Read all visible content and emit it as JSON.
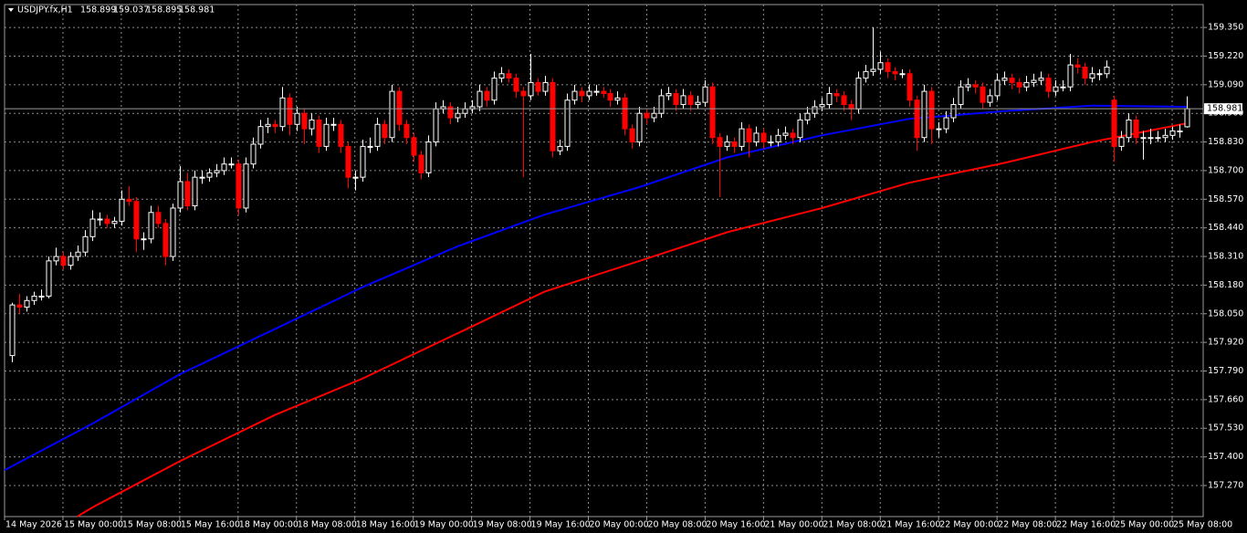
{
  "chart_data": {
    "type": "candlestick",
    "title": "USDJPY.fx,H1",
    "bull_color": "#ffffff",
    "bear_color": "#ff0000",
    "grid": true,
    "xlim": [
      -1,
      163.25
    ],
    "ylim": [
      157.129,
      159.454
    ],
    "yticks": [
      {
        "value": 159.35,
        "label": "159.350"
      },
      {
        "value": 159.22,
        "label": "159.220"
      },
      {
        "value": 159.09,
        "label": "159.090"
      },
      {
        "value": 158.96,
        "label": "158.960"
      },
      {
        "value": 158.83,
        "label": "158.830"
      },
      {
        "value": 158.7,
        "label": "158.700"
      },
      {
        "value": 158.57,
        "label": "158.570"
      },
      {
        "value": 158.44,
        "label": "158.440"
      },
      {
        "value": 158.31,
        "label": "158.310"
      },
      {
        "value": 158.18,
        "label": "158.180"
      },
      {
        "value": 158.05,
        "label": "158.050"
      },
      {
        "value": 157.92,
        "label": "157.920"
      },
      {
        "value": 157.79,
        "label": "157.790"
      },
      {
        "value": 157.66,
        "label": "157.660"
      },
      {
        "value": 157.53,
        "label": "157.530"
      },
      {
        "value": 157.4,
        "label": "157.400"
      },
      {
        "value": 157.27,
        "label": "157.270"
      }
    ],
    "xticks": [
      {
        "value": -1,
        "label": "14 May 2026"
      },
      {
        "value": 7,
        "label": "15 May 00:00"
      },
      {
        "value": 15,
        "label": "15 May 08:00"
      },
      {
        "value": 23,
        "label": "15 May 16:00"
      },
      {
        "value": 31,
        "label": "18 May 00:00"
      },
      {
        "value": 39,
        "label": "18 May 08:00"
      },
      {
        "value": 47,
        "label": "18 May 16:00"
      },
      {
        "value": 55,
        "label": "19 May 00:00"
      },
      {
        "value": 63,
        "label": "19 May 08:00"
      },
      {
        "value": 71,
        "label": "19 May 16:00"
      },
      {
        "value": 79,
        "label": "20 May 00:00"
      },
      {
        "value": 87,
        "label": "20 May 08:00"
      },
      {
        "value": 95,
        "label": "20 May 16:00"
      },
      {
        "value": 103,
        "label": "21 May 00:00"
      },
      {
        "value": 111,
        "label": "21 May 08:00"
      },
      {
        "value": 119,
        "label": "21 May 16:00"
      },
      {
        "value": 127,
        "label": "22 May 00:00"
      },
      {
        "value": 135,
        "label": "22 May 08:00"
      },
      {
        "value": 143,
        "label": "22 May 16:00"
      },
      {
        "value": 151,
        "label": "25 May 00:00"
      },
      {
        "value": 159,
        "label": "25 May 08:00"
      }
    ],
    "ohlc": [
      [
        157.86,
        158.1,
        157.83,
        158.09
      ],
      [
        158.09,
        158.14,
        158.05,
        158.08
      ],
      [
        158.08,
        158.13,
        158.06,
        158.11
      ],
      [
        158.11,
        158.15,
        158.09,
        158.13
      ],
      [
        158.13,
        158.16,
        158.11,
        158.13
      ],
      [
        158.13,
        158.31,
        158.12,
        158.29
      ],
      [
        158.29,
        158.35,
        158.27,
        158.31
      ],
      [
        158.31,
        158.33,
        158.25,
        158.27
      ],
      [
        158.27,
        158.33,
        158.25,
        158.31
      ],
      [
        158.31,
        158.36,
        158.29,
        158.33
      ],
      [
        158.33,
        158.43,
        158.31,
        158.4
      ],
      [
        158.4,
        158.52,
        158.38,
        158.48
      ],
      [
        158.48,
        158.51,
        158.45,
        158.48
      ],
      [
        158.48,
        158.5,
        158.44,
        158.46
      ],
      [
        158.46,
        158.49,
        158.44,
        158.47
      ],
      [
        158.47,
        158.61,
        158.45,
        158.57
      ],
      [
        158.57,
        158.63,
        158.54,
        158.56
      ],
      [
        158.56,
        158.58,
        158.33,
        158.39
      ],
      [
        158.39,
        158.42,
        158.34,
        158.39
      ],
      [
        158.39,
        158.54,
        158.37,
        158.51
      ],
      [
        158.51,
        158.54,
        158.44,
        158.46
      ],
      [
        158.46,
        158.48,
        158.27,
        158.31
      ],
      [
        158.31,
        158.55,
        158.29,
        158.53
      ],
      [
        158.53,
        158.72,
        158.51,
        158.65
      ],
      [
        158.65,
        158.69,
        158.52,
        158.54
      ],
      [
        158.54,
        158.7,
        158.52,
        158.67
      ],
      [
        158.67,
        158.7,
        158.64,
        158.67
      ],
      [
        158.67,
        158.71,
        158.65,
        158.69
      ],
      [
        158.69,
        158.73,
        158.67,
        158.7
      ],
      [
        158.7,
        158.76,
        158.68,
        158.73
      ],
      [
        158.73,
        158.76,
        158.71,
        158.73
      ],
      [
        158.73,
        158.75,
        158.5,
        158.53
      ],
      [
        158.53,
        158.76,
        158.51,
        158.73
      ],
      [
        158.73,
        158.85,
        158.71,
        158.82
      ],
      [
        158.82,
        158.93,
        158.8,
        158.9
      ],
      [
        158.9,
        158.94,
        158.87,
        158.91
      ],
      [
        158.91,
        158.93,
        158.87,
        158.9
      ],
      [
        158.9,
        159.08,
        158.88,
        159.03
      ],
      [
        159.03,
        159.05,
        158.86,
        158.91
      ],
      [
        158.91,
        158.99,
        158.88,
        158.96
      ],
      [
        158.96,
        158.98,
        158.82,
        158.89
      ],
      [
        158.89,
        158.96,
        158.86,
        158.93
      ],
      [
        158.93,
        158.95,
        158.78,
        158.81
      ],
      [
        158.81,
        158.94,
        158.79,
        158.91
      ],
      [
        158.91,
        158.94,
        158.88,
        158.91
      ],
      [
        158.91,
        158.93,
        158.78,
        158.81
      ],
      [
        158.81,
        158.83,
        158.62,
        158.67
      ],
      [
        158.67,
        158.7,
        158.61,
        158.67
      ],
      [
        158.67,
        158.84,
        158.65,
        158.81
      ],
      [
        158.81,
        158.85,
        158.78,
        158.81
      ],
      [
        158.81,
        158.94,
        158.79,
        158.91
      ],
      [
        158.91,
        158.93,
        158.82,
        158.85
      ],
      [
        158.85,
        159.09,
        158.83,
        159.06
      ],
      [
        159.06,
        159.08,
        158.88,
        158.91
      ],
      [
        158.91,
        158.93,
        158.82,
        158.85
      ],
      [
        158.85,
        158.87,
        158.74,
        158.77
      ],
      [
        158.77,
        158.79,
        158.66,
        158.69
      ],
      [
        158.69,
        158.86,
        158.67,
        158.83
      ],
      [
        158.83,
        159.01,
        158.81,
        158.98
      ],
      [
        158.98,
        159.02,
        158.96,
        158.99
      ],
      [
        158.99,
        159.01,
        158.91,
        158.94
      ],
      [
        158.94,
        158.99,
        158.92,
        158.96
      ],
      [
        158.96,
        159.01,
        158.94,
        158.98
      ],
      [
        158.98,
        159.02,
        158.96,
        158.99
      ],
      [
        158.99,
        159.09,
        158.97,
        159.06
      ],
      [
        159.06,
        159.08,
        158.99,
        159.02
      ],
      [
        159.02,
        159.15,
        159.0,
        159.12
      ],
      [
        159.12,
        159.17,
        159.1,
        159.14
      ],
      [
        159.14,
        159.16,
        159.1,
        159.12
      ],
      [
        159.12,
        159.14,
        159.03,
        159.06
      ],
      [
        159.06,
        159.08,
        158.67,
        159.04
      ],
      [
        159.04,
        159.23,
        159.02,
        159.1
      ],
      [
        159.1,
        159.12,
        159.04,
        159.06
      ],
      [
        159.06,
        159.13,
        159.04,
        159.1
      ],
      [
        159.1,
        159.12,
        158.76,
        158.79
      ],
      [
        158.79,
        158.84,
        158.77,
        158.81
      ],
      [
        158.81,
        159.05,
        158.79,
        159.02
      ],
      [
        159.02,
        159.09,
        159.0,
        159.06
      ],
      [
        159.06,
        159.08,
        159.01,
        159.04
      ],
      [
        159.04,
        159.09,
        159.02,
        159.06
      ],
      [
        159.06,
        159.09,
        159.04,
        159.06
      ],
      [
        159.06,
        159.08,
        159.03,
        159.05
      ],
      [
        159.05,
        159.07,
        158.99,
        159.02
      ],
      [
        159.02,
        159.06,
        159.0,
        159.03
      ],
      [
        159.03,
        159.05,
        158.86,
        158.89
      ],
      [
        158.89,
        158.91,
        158.8,
        158.83
      ],
      [
        158.83,
        158.99,
        158.81,
        158.96
      ],
      [
        158.96,
        158.98,
        158.91,
        158.94
      ],
      [
        158.94,
        158.99,
        158.92,
        158.96
      ],
      [
        158.96,
        159.07,
        158.94,
        159.04
      ],
      [
        159.04,
        159.08,
        159.02,
        159.05
      ],
      [
        159.05,
        159.07,
        158.97,
        159.0
      ],
      [
        159.0,
        159.07,
        158.98,
        159.04
      ],
      [
        159.04,
        159.06,
        158.97,
        159.0
      ],
      [
        159.0,
        159.04,
        158.98,
        159.01
      ],
      [
        159.01,
        159.11,
        158.99,
        159.08
      ],
      [
        159.08,
        159.1,
        158.82,
        158.85
      ],
      [
        158.85,
        158.87,
        158.58,
        158.81
      ],
      [
        158.81,
        158.86,
        158.79,
        158.83
      ],
      [
        158.83,
        158.85,
        158.78,
        158.81
      ],
      [
        158.81,
        158.92,
        158.79,
        158.89
      ],
      [
        158.89,
        158.91,
        158.76,
        158.83
      ],
      [
        158.83,
        158.9,
        158.81,
        158.87
      ],
      [
        158.87,
        158.89,
        158.8,
        158.83
      ],
      [
        158.83,
        158.86,
        158.81,
        158.83
      ],
      [
        158.83,
        158.89,
        158.81,
        158.86
      ],
      [
        158.86,
        158.9,
        158.84,
        158.87
      ],
      [
        158.87,
        158.89,
        158.82,
        158.85
      ],
      [
        158.85,
        158.96,
        158.83,
        158.93
      ],
      [
        158.93,
        158.99,
        158.91,
        158.96
      ],
      [
        158.96,
        159.02,
        158.94,
        158.99
      ],
      [
        158.99,
        159.03,
        158.97,
        159.0
      ],
      [
        159.0,
        159.08,
        158.98,
        159.05
      ],
      [
        159.05,
        159.07,
        159.01,
        159.04
      ],
      [
        159.04,
        159.06,
        158.97,
        159.0
      ],
      [
        159.0,
        159.02,
        158.93,
        158.98
      ],
      [
        158.98,
        159.15,
        158.96,
        159.12
      ],
      [
        159.12,
        159.18,
        159.1,
        159.15
      ],
      [
        159.15,
        159.35,
        159.13,
        159.16
      ],
      [
        159.16,
        159.24,
        159.14,
        159.19
      ],
      [
        159.19,
        159.21,
        159.12,
        159.15
      ],
      [
        159.15,
        159.17,
        159.11,
        159.14
      ],
      [
        159.14,
        159.16,
        159.12,
        159.14
      ],
      [
        159.14,
        159.16,
        158.99,
        159.02
      ],
      [
        159.02,
        159.04,
        158.79,
        158.85
      ],
      [
        158.85,
        159.09,
        158.83,
        159.06
      ],
      [
        159.06,
        159.08,
        158.82,
        158.89
      ],
      [
        158.89,
        158.92,
        158.85,
        158.89
      ],
      [
        158.89,
        158.97,
        158.87,
        158.94
      ],
      [
        158.94,
        159.03,
        158.92,
        159.0
      ],
      [
        159.0,
        159.11,
        158.98,
        159.08
      ],
      [
        159.08,
        159.12,
        159.06,
        159.09
      ],
      [
        159.09,
        159.11,
        159.05,
        159.08
      ],
      [
        159.08,
        159.1,
        158.98,
        159.01
      ],
      [
        159.01,
        159.07,
        158.99,
        159.04
      ],
      [
        159.04,
        159.14,
        159.02,
        159.11
      ],
      [
        159.11,
        159.15,
        159.09,
        159.12
      ],
      [
        159.12,
        159.14,
        159.07,
        159.1
      ],
      [
        159.1,
        159.12,
        159.05,
        159.08
      ],
      [
        159.08,
        159.13,
        159.06,
        159.1
      ],
      [
        159.1,
        159.14,
        159.08,
        159.11
      ],
      [
        159.11,
        159.15,
        159.09,
        159.12
      ],
      [
        159.12,
        159.14,
        159.03,
        159.06
      ],
      [
        159.06,
        159.11,
        159.04,
        159.08
      ],
      [
        159.08,
        159.11,
        159.06,
        159.08
      ],
      [
        159.08,
        159.23,
        159.06,
        159.18
      ],
      [
        159.18,
        159.21,
        159.14,
        159.17
      ],
      [
        159.17,
        159.19,
        159.09,
        159.12
      ],
      [
        159.12,
        159.17,
        159.1,
        159.14
      ],
      [
        159.14,
        159.16,
        159.11,
        159.14
      ],
      [
        159.14,
        159.2,
        159.12,
        159.17
      ],
      [
        159.02,
        159.04,
        158.74,
        158.81
      ],
      [
        158.81,
        158.88,
        158.79,
        158.85
      ],
      [
        158.85,
        158.96,
        158.83,
        158.93
      ],
      [
        158.93,
        158.95,
        158.82,
        158.85
      ],
      [
        158.85,
        158.88,
        158.75,
        158.85
      ],
      [
        158.85,
        158.89,
        158.82,
        158.85
      ],
      [
        158.85,
        158.88,
        158.83,
        158.85
      ],
      [
        158.85,
        158.89,
        158.83,
        158.86
      ],
      [
        158.86,
        158.9,
        158.84,
        158.88
      ],
      [
        158.88,
        158.91,
        158.85,
        158.88
      ],
      [
        158.899,
        159.037,
        158.895,
        158.981
      ]
    ],
    "lines": [
      {
        "color": "#0000ff",
        "x": [
          -1,
          11,
          23,
          36,
          48,
          61,
          73,
          86,
          98,
          111,
          123,
          136,
          148,
          161
        ],
        "values": [
          157.34,
          157.55,
          157.775,
          157.98,
          158.17,
          158.355,
          158.5,
          158.625,
          158.76,
          158.86,
          158.935,
          158.97,
          158.995,
          158.99
        ]
      },
      {
        "color": "#ff0000",
        "x": [
          9,
          11,
          23,
          36,
          48,
          61,
          73,
          86,
          98,
          111,
          123,
          136,
          148,
          161
        ],
        "values": [
          157.13,
          157.17,
          157.38,
          157.59,
          157.755,
          157.96,
          158.15,
          158.29,
          158.42,
          158.53,
          158.645,
          158.735,
          158.83,
          158.915
        ]
      }
    ]
  }
}
